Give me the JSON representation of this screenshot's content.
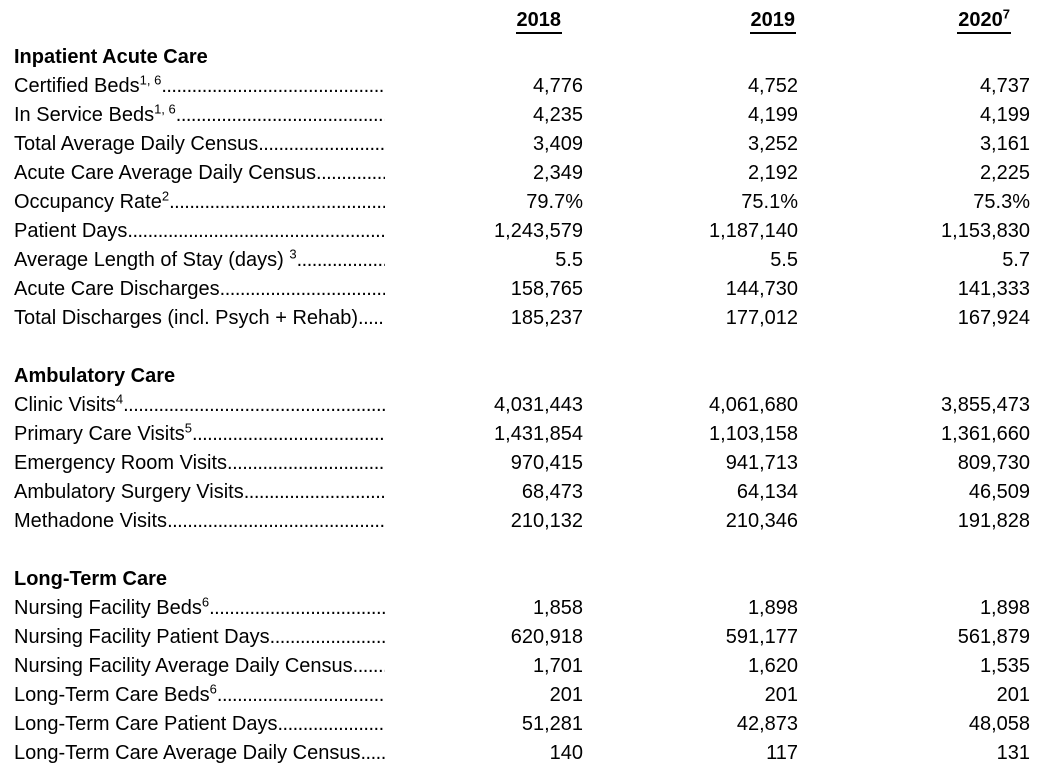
{
  "table": {
    "columns": [
      {
        "label": "2018",
        "sup": ""
      },
      {
        "label": "2019",
        "sup": ""
      },
      {
        "label": "2020",
        "sup": "7"
      }
    ],
    "sections": [
      {
        "heading": "Inpatient Acute Care",
        "rows": [
          {
            "label": "Certified Beds",
            "sup": "1, 6",
            "values": [
              "4,776",
              "4,752",
              "4,737"
            ]
          },
          {
            "label": "In Service Beds",
            "sup": "1, 6",
            "values": [
              "4,235",
              "4,199",
              "4,199"
            ]
          },
          {
            "label": "Total Average Daily Census",
            "sup": "",
            "values": [
              "3,409",
              "3,252",
              "3,161"
            ]
          },
          {
            "label": "Acute Care Average Daily Census",
            "sup": "",
            "values": [
              "2,349",
              "2,192",
              "2,225"
            ]
          },
          {
            "label": "Occupancy Rate",
            "sup": "2",
            "values": [
              "79.7%",
              "75.1%",
              "75.3%"
            ]
          },
          {
            "label": "Patient Days",
            "sup": "",
            "values": [
              "1,243,579",
              "1,187,140",
              "1,153,830"
            ]
          },
          {
            "label": "Average Length of Stay (days) ",
            "sup": "3",
            "values": [
              "5.5",
              "5.5",
              "5.7"
            ]
          },
          {
            "label": "Acute Care Discharges",
            "sup": "",
            "values": [
              "158,765",
              "144,730",
              "141,333"
            ]
          },
          {
            "label": "Total Discharges (incl. Psych + Rehab)",
            "sup": "",
            "values": [
              "185,237",
              "177,012",
              "167,924"
            ]
          }
        ]
      },
      {
        "heading": "Ambulatory Care",
        "rows": [
          {
            "label": "Clinic Visits",
            "sup": "4",
            "values": [
              "4,031,443",
              "4,061,680",
              "3,855,473"
            ]
          },
          {
            "label": "Primary Care Visits",
            "sup": "5",
            "values": [
              "1,431,854",
              "1,103,158",
              "1,361,660"
            ]
          },
          {
            "label": "Emergency Room Visits",
            "sup": "",
            "values": [
              "970,415",
              "941,713",
              "809,730"
            ]
          },
          {
            "label": "Ambulatory Surgery Visits",
            "sup": "",
            "values": [
              "68,473",
              "64,134",
              "46,509"
            ]
          },
          {
            "label": "Methadone Visits",
            "sup": "",
            "values": [
              "210,132",
              "210,346",
              "191,828"
            ]
          }
        ]
      },
      {
        "heading": "Long-Term Care",
        "rows": [
          {
            "label": "Nursing Facility Beds",
            "sup": "6",
            "values": [
              "1,858",
              "1,898",
              "1,898"
            ]
          },
          {
            "label": "Nursing Facility Patient Days",
            "sup": "",
            "values": [
              "620,918",
              "591,177",
              "561,879"
            ]
          },
          {
            "label": "Nursing Facility Average Daily Census",
            "sup": "",
            "values": [
              "1,701",
              "1,620",
              "1,535"
            ]
          },
          {
            "label": "Long-Term Care Beds",
            "sup": "6",
            "values": [
              "201",
              "201",
              "201"
            ]
          },
          {
            "label": "Long-Term Care Patient Days",
            "sup": "",
            "values": [
              "51,281",
              "42,873",
              "48,058"
            ]
          },
          {
            "label": "Long-Term Care Average Daily Census",
            "sup": "",
            "values": [
              "140",
              "117",
              "131"
            ]
          }
        ]
      }
    ]
  }
}
